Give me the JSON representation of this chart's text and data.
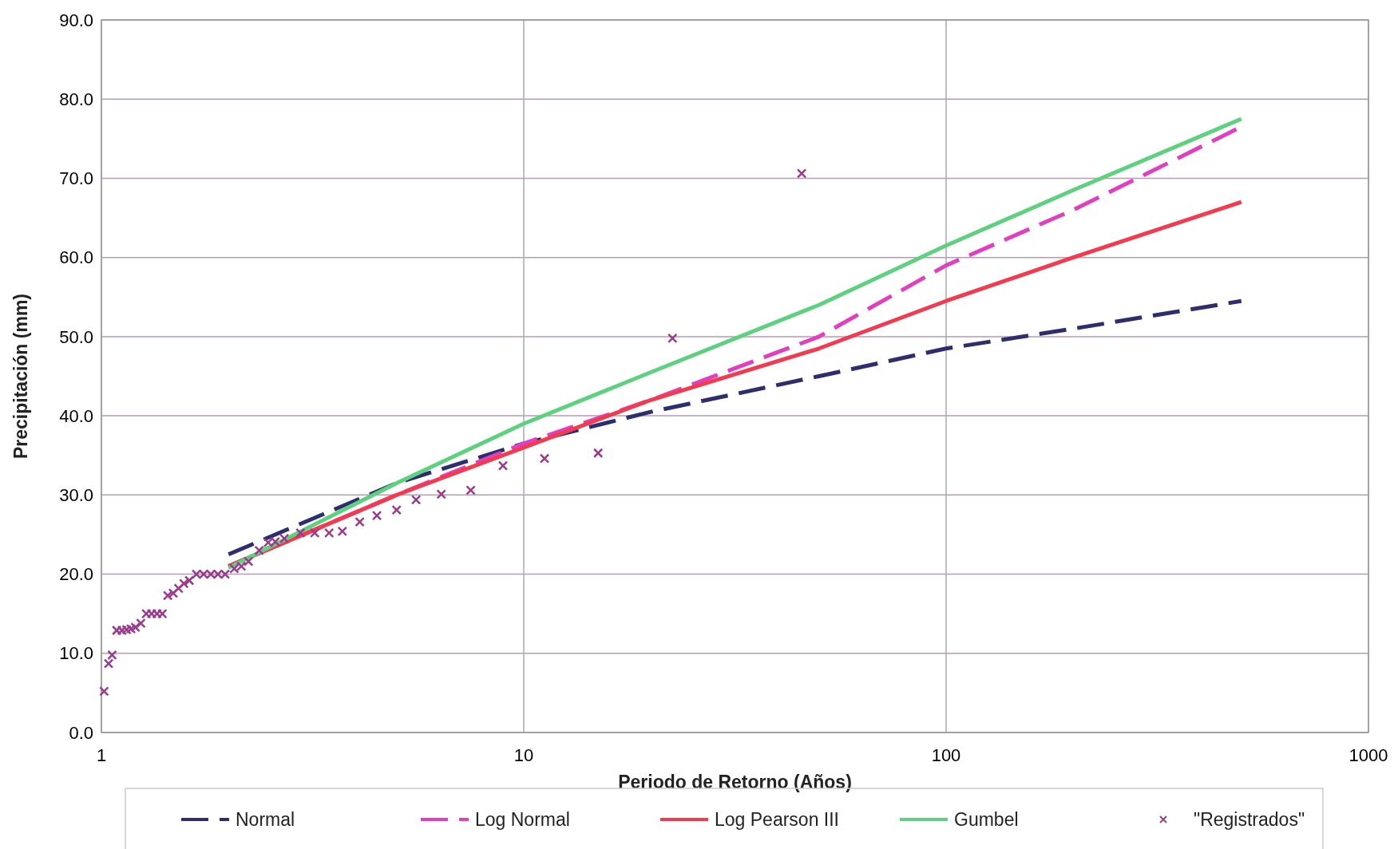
{
  "chart_data": {
    "type": "line",
    "xlabel": "Periodo de Retorno (Años)",
    "ylabel": "Precipitación (mm)",
    "log": "x",
    "grid": true,
    "legend": "bottom",
    "xlim": [
      1,
      1000
    ],
    "xticks": [
      1,
      10,
      100,
      1000
    ],
    "ylim": [
      0,
      90
    ],
    "yticks": [
      {
        "value": 0,
        "label": "0.0"
      },
      {
        "value": 10,
        "label": "10.0"
      },
      {
        "value": 20,
        "label": "20.0"
      },
      {
        "value": 30,
        "label": "30.0"
      },
      {
        "value": 40,
        "label": "40.0"
      },
      {
        "value": 50,
        "label": "50.0"
      },
      {
        "value": 60,
        "label": "60.0"
      },
      {
        "value": 70,
        "label": "70.0"
      },
      {
        "value": 80,
        "label": "80.0"
      },
      {
        "value": 90,
        "label": "90.0"
      }
    ],
    "series": [
      {
        "name": "Normal",
        "color": "#2e2e6e",
        "line_style": "dashed",
        "x": [
          2,
          5,
          10,
          20,
          50,
          100,
          200,
          500
        ],
        "values": [
          22.5,
          31.5,
          36.5,
          40.5,
          45,
          48.5,
          51,
          54.5
        ]
      },
      {
        "name": "Log Normal",
        "color": "#e040c0",
        "line_style": "dashed",
        "x": [
          2,
          5,
          10,
          20,
          50,
          100,
          200,
          500
        ],
        "values": [
          21,
          30,
          36.5,
          42,
          50,
          59,
          66,
          76.5
        ]
      },
      {
        "name": "Log Pearson III",
        "color": "#f03c50",
        "line_style": "solid",
        "x": [
          2,
          5,
          10,
          20,
          50,
          100,
          200,
          500
        ],
        "values": [
          21,
          30,
          36,
          42,
          48.5,
          54.5,
          60,
          67
        ]
      },
      {
        "name": "Gumbel",
        "color": "#5fd080",
        "line_style": "solid",
        "x": [
          2,
          5,
          10,
          20,
          50,
          100,
          200,
          500
        ],
        "values": [
          20.8,
          31.5,
          39,
          45.5,
          54,
          61.5,
          68.5,
          77.5
        ]
      },
      {
        "name": "\"Registrados\"",
        "type": "scatter",
        "marker": "cross",
        "color": "#9a3c8c",
        "x": [
          1.015,
          1.04,
          1.06,
          1.087,
          1.119,
          1.147,
          1.175,
          1.204,
          1.24,
          1.277,
          1.315,
          1.354,
          1.394,
          1.436,
          1.479,
          1.523,
          1.568,
          1.615,
          1.679,
          1.746,
          1.816,
          1.888,
          1.963,
          2.063,
          2.144,
          2.23,
          2.364,
          2.483,
          2.58,
          2.71,
          2.96,
          3.2,
          3.46,
          3.72,
          4.09,
          4.49,
          5.0,
          5.56,
          6.38,
          7.49,
          8.93,
          11.2,
          15.0,
          22.5,
          45.5
        ],
        "values": [
          5.2,
          8.7,
          9.8,
          12.9,
          12.9,
          13,
          13.1,
          13.3,
          13.8,
          15,
          15,
          15,
          15,
          17.3,
          17.6,
          18.2,
          18.8,
          19.2,
          20,
          20,
          20,
          20,
          20,
          20.7,
          21,
          21.6,
          23,
          24,
          24.1,
          24.5,
          25.2,
          25.2,
          25.2,
          25.4,
          26.6,
          27.4,
          28.1,
          29.4,
          30.1,
          30.6,
          33.7,
          34.6,
          35.3,
          49.8,
          70.6
        ]
      }
    ]
  }
}
